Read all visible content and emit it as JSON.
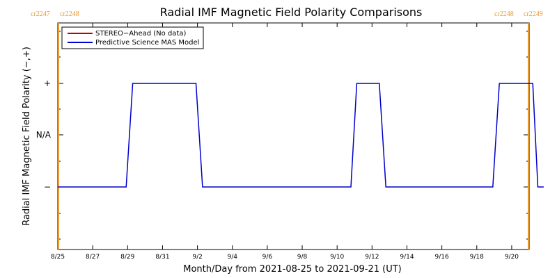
{
  "chart_data": {
    "type": "line",
    "title": "Radial IMF Magnetic Field Polarity Comparisons",
    "xlabel": "Month/Day from 2021-08-25 to 2021-09-21 (UT)",
    "ylabel": "Radial IMF Magnetic Field Polarity (−,+)",
    "x_unit": "days",
    "xlim": [
      "2021-08-25",
      "2021-09-21"
    ],
    "x_tick_dates": [
      "2021-08-25",
      "2021-08-27",
      "2021-08-29",
      "2021-08-31",
      "2021-09-02",
      "2021-09-04",
      "2021-09-06",
      "2021-09-08",
      "2021-09-10",
      "2021-09-12",
      "2021-09-14",
      "2021-09-16",
      "2021-09-18",
      "2021-09-20"
    ],
    "x_tick_labels": [
      "8/25",
      "8/27",
      "8/29",
      "8/31",
      "9/2",
      "9/4",
      "9/6",
      "9/8",
      "9/10",
      "9/12",
      "9/14",
      "9/16",
      "9/18",
      "9/20"
    ],
    "y_categories": [
      "−",
      "N/A",
      "+"
    ],
    "grid": false,
    "legend_position": "top-left",
    "carrington_markers": [
      {
        "date": "2021-08-25",
        "labels": [
          "cr2247",
          "cr2248"
        ],
        "color": "#e69a2e",
        "side": "left"
      },
      {
        "date": "2021-09-21 21:00",
        "labels": [
          "cr2248",
          "cr2249"
        ],
        "color": "#e69a2e",
        "side": "right"
      }
    ],
    "series": [
      {
        "name": "STEREO−Ahead (No data)",
        "color": "#c00000",
        "x": [],
        "y": []
      },
      {
        "name": "Predictive Science MAS Model",
        "color": "#0000cc",
        "x": [
          "2021-08-25 00:00",
          "2021-08-28 22:00",
          "2021-08-29 07:00",
          "2021-09-01 22:00",
          "2021-09-02 07:00",
          "2021-09-10 19:00",
          "2021-09-11 03:00",
          "2021-09-12 10:00",
          "2021-09-12 19:00",
          "2021-09-18 22:00",
          "2021-09-19 07:00",
          "2021-09-21 05:00",
          "2021-09-21 12:00",
          "2021-09-21 20:00"
        ],
        "y": [
          "−",
          "−",
          "+",
          "+",
          "−",
          "−",
          "+",
          "+",
          "−",
          "−",
          "+",
          "+",
          "−",
          "−"
        ]
      }
    ]
  }
}
